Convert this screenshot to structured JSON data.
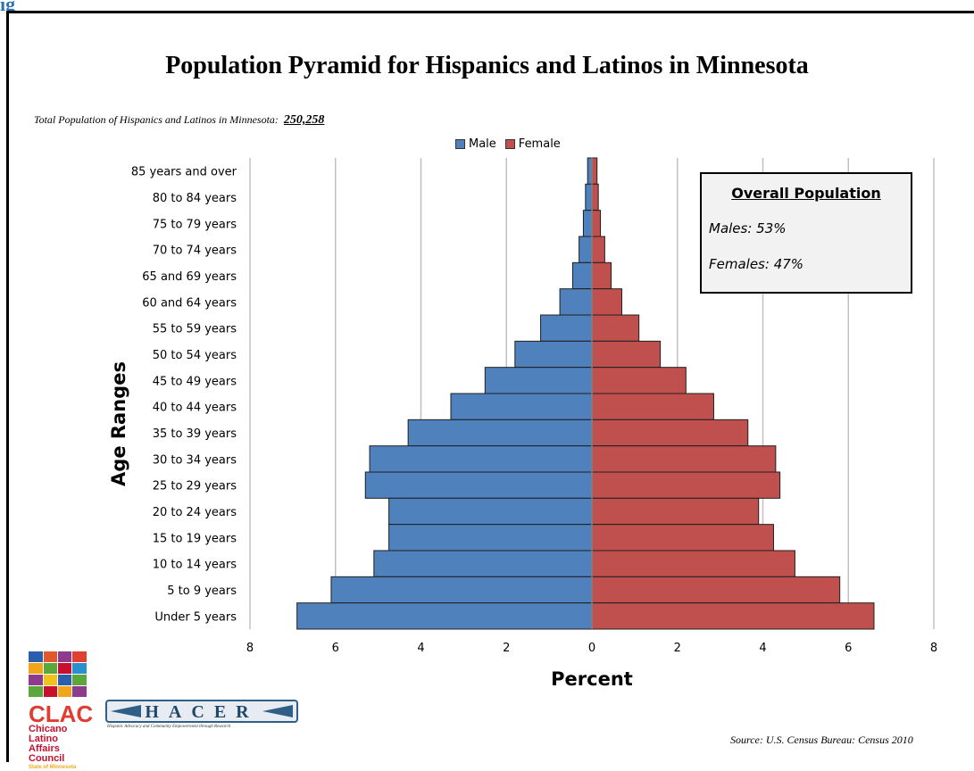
{
  "page": {
    "cut_heading": "ig",
    "total_label": "Total Population of Hispanics and Latinos in Minnesota:",
    "total_value": "250,258",
    "source": "Source: U.S. Census Bureau: Census 2010"
  },
  "infobox": {
    "title": "Overall Population",
    "males": "Males: 53%",
    "females": "Females: 47%"
  },
  "logos": {
    "clac_name": "CLAC",
    "clac_line1": "Chicano Latino",
    "clac_line2": "Affairs Council",
    "clac_line3": "State of Minnesota",
    "hacer_name": "HACER",
    "hacer_tagline": "Hispanic Advocacy and Community Empowerment through Research"
  },
  "colors": {
    "male": "#4f81bd",
    "female": "#c0504d",
    "grid": "#c0c0c0",
    "infobox_bg": "#f2f2f2"
  },
  "chart_data": {
    "type": "bar",
    "orientation": "horizontal",
    "title": "Population Pyramid for Hispanics and Latinos in Minnesota",
    "xlabel": "Percent",
    "ylabel": "Age Ranges",
    "xlim": [
      -8,
      8
    ],
    "x_ticks": [
      -8,
      -6,
      -4,
      -2,
      0,
      2,
      4,
      6,
      8
    ],
    "x_tick_labels": [
      "8",
      "6",
      "4",
      "2",
      "0",
      "2",
      "4",
      "6",
      "8"
    ],
    "grid": true,
    "legend_position": "top-center",
    "categories": [
      "85 years and over",
      "80 to 84 years",
      "75 to 79 years",
      "70 to 74 years",
      "65 and 69 years",
      "60 and 64 years",
      "55 to 59 years",
      "50 to 54 years",
      "45 to 49 years",
      "40 to 44 years",
      "35 to 39 years",
      "30 to 34 years",
      "25 to 29 years",
      "20 to 24 years",
      "15 to 19 years",
      "10 to 14 years",
      "5 to 9 years",
      "Under 5 years"
    ],
    "series": [
      {
        "name": "Male",
        "color": "#4f81bd",
        "values": [
          0.1,
          0.15,
          0.2,
          0.3,
          0.45,
          0.75,
          1.2,
          1.8,
          2.5,
          3.3,
          4.3,
          5.2,
          5.3,
          4.75,
          4.75,
          5.1,
          6.1,
          6.9
        ]
      },
      {
        "name": "Female",
        "color": "#c0504d",
        "values": [
          0.12,
          0.15,
          0.2,
          0.3,
          0.45,
          0.7,
          1.1,
          1.6,
          2.2,
          2.85,
          3.65,
          4.3,
          4.4,
          3.9,
          4.25,
          4.75,
          5.8,
          6.6
        ]
      }
    ]
  }
}
